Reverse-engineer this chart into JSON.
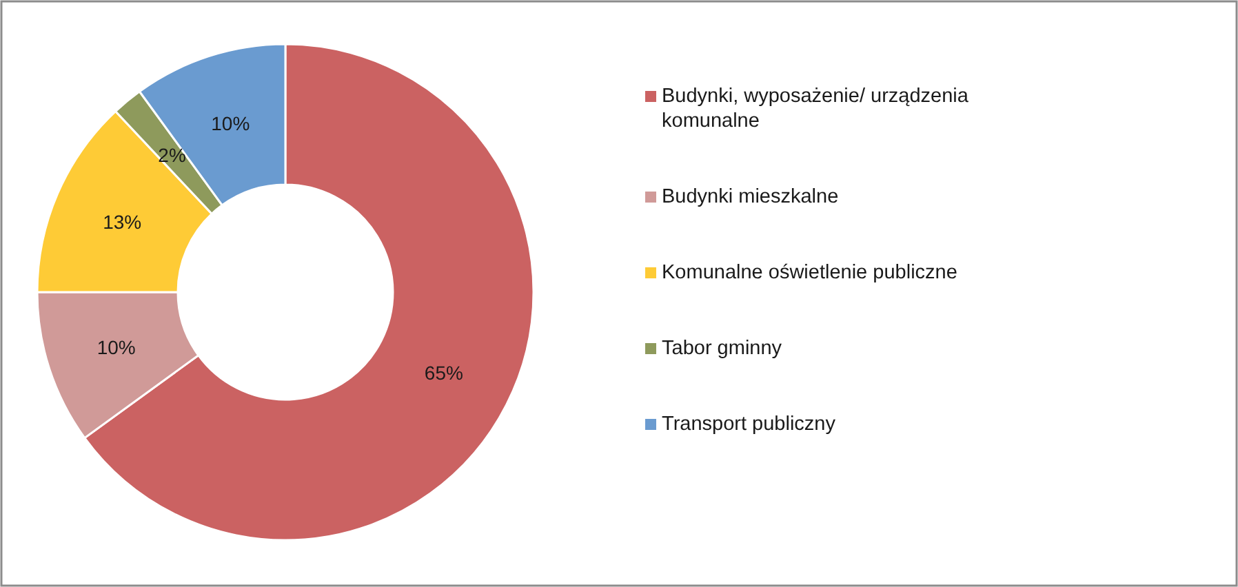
{
  "chart_data": {
    "type": "donut",
    "categories": [
      "Budynki, wyposażenie/ urządzenia komunalne",
      "Budynki mieszkalne",
      "Komunalne oświetlenie publiczne",
      "Tabor gminny",
      "Transport publiczny"
    ],
    "values": [
      65,
      10,
      13,
      2,
      10
    ],
    "colors": [
      "#cb6262",
      "#d09a98",
      "#fecb36",
      "#8e9a5c",
      "#6a9bd0"
    ],
    "value_labels": [
      "65%",
      "10%",
      "13%",
      "2%",
      "10%"
    ],
    "legend": "right"
  }
}
